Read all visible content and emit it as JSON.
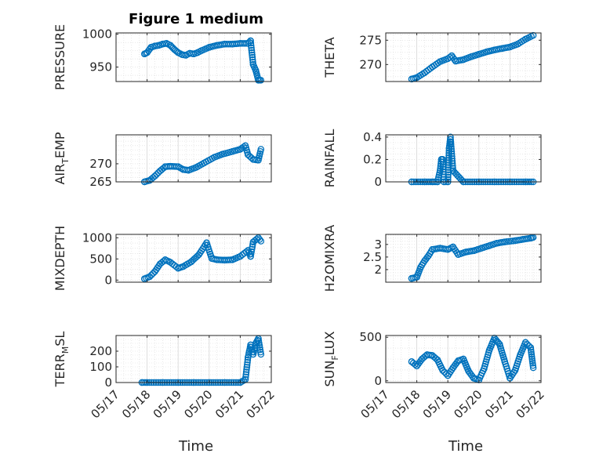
{
  "figure": {
    "title": "Figure 1 medium"
  },
  "style": {
    "marker_color": "#0072BD",
    "grid_color": "#d9d9d9",
    "axis_color": "#262626"
  },
  "chart_data": [
    {
      "id": "pressure",
      "type": "scatter",
      "title": "Figure 1 medium",
      "ylabel": "PRESSURE",
      "ylim": [
        928,
        1002
      ],
      "yticks": [
        950,
        1000
      ],
      "xlabel": "",
      "grid": true,
      "x": [
        "05/17 22:00",
        "05/18 00:00",
        "05/18 03:00",
        "05/18 06:00",
        "05/18 09:00",
        "05/18 12:00",
        "05/18 15:00",
        "05/18 18:00",
        "05/18 21:00",
        "05/19 00:00",
        "05/19 03:00",
        "05/19 06:00",
        "05/19 09:00",
        "05/19 12:00",
        "05/19 15:00",
        "05/19 18:00",
        "05/20 00:00",
        "05/20 06:00",
        "05/20 12:00",
        "05/20 18:00",
        "05/21 00:00",
        "05/21 06:00",
        "05/21 08:00",
        "05/21 10:00",
        "05/21 12:00",
        "05/21 14:00",
        "05/21 16:00"
      ],
      "y": [
        970,
        972,
        980,
        982,
        983,
        985,
        986,
        983,
        977,
        972,
        969,
        968,
        971,
        970,
        972,
        975,
        980,
        983,
        985,
        985,
        986,
        986,
        990,
        954,
        945,
        930,
        930
      ]
    },
    {
      "id": "theta",
      "type": "scatter",
      "ylabel": "THETA",
      "ylim": [
        266.5,
        276.5
      ],
      "yticks": [
        270,
        275
      ],
      "grid": true,
      "x": [
        "05/17 20:00",
        "05/18 00:00",
        "05/18 06:00",
        "05/18 12:00",
        "05/18 18:00",
        "05/19 00:00",
        "05/19 03:00",
        "05/19 06:00",
        "05/19 12:00",
        "05/19 18:00",
        "05/20 00:00",
        "05/20 06:00",
        "05/20 12:00",
        "05/20 18:00",
        "05/21 00:00",
        "05/21 06:00",
        "05/21 12:00",
        "05/21 18:00"
      ],
      "y": [
        267,
        267.3,
        268.3,
        269.5,
        270.6,
        271.2,
        271.8,
        270.7,
        271,
        271.6,
        272.1,
        272.6,
        273,
        273.3,
        273.6,
        274.2,
        275.2,
        276
      ]
    },
    {
      "id": "air_temp",
      "type": "scatter",
      "ylabel": "AIR_TEMP",
      "ylim": [
        265,
        278
      ],
      "yticks": [
        265,
        270
      ],
      "grid": true,
      "x": [
        "05/17 22:00",
        "05/18 02:00",
        "05/18 06:00",
        "05/18 10:00",
        "05/18 14:00",
        "05/18 18:00",
        "05/19 00:00",
        "05/19 04:00",
        "05/19 08:00",
        "05/19 14:00",
        "05/19 20:00",
        "05/20 04:00",
        "05/20 10:00",
        "05/20 18:00",
        "05/21 00:00",
        "05/21 04:00",
        "05/21 06:00",
        "05/21 10:00",
        "05/21 14:00",
        "05/21 16:00"
      ],
      "y": [
        265,
        265.4,
        266.6,
        268,
        269.2,
        269.3,
        269.2,
        268.4,
        268.2,
        269,
        270.2,
        271.8,
        272.6,
        273.4,
        274,
        275,
        272.5,
        271.2,
        271,
        274
      ]
    },
    {
      "id": "rainfall",
      "type": "scatter",
      "ylabel": "RAINFALL",
      "ylim": [
        0,
        0.42
      ],
      "yticks": [
        0,
        0.2,
        0.4
      ],
      "grid": true,
      "x": [
        "05/17 20:00",
        "05/18 06:00",
        "05/18 12:00",
        "05/18 16:00",
        "05/18 18:00",
        "05/18 19:00",
        "05/18 20:00",
        "05/18 21:00",
        "05/19 00:00",
        "05/19 01:00",
        "05/19 02:00",
        "05/19 04:00",
        "05/19 12:00",
        "05/20 00:00",
        "05/20 12:00",
        "05/21 00:00",
        "05/21 12:00",
        "05/21 18:00"
      ],
      "y": [
        0,
        0,
        0,
        0,
        0.1,
        0.2,
        0.2,
        0,
        0,
        0.3,
        0.4,
        0.1,
        0,
        0,
        0,
        0,
        0,
        0
      ]
    },
    {
      "id": "mixdepth",
      "type": "scatter",
      "ylabel": "MIXDEPTH",
      "ylim": [
        -50,
        1080
      ],
      "yticks": [
        0,
        500,
        1000
      ],
      "grid": true,
      "x": [
        "05/17 22:00",
        "05/18 02:00",
        "05/18 06:00",
        "05/18 10:00",
        "05/18 14:00",
        "05/18 18:00",
        "05/19 00:00",
        "05/19 04:00",
        "05/19 10:00",
        "05/19 16:00",
        "05/19 22:00",
        "05/20 02:00",
        "05/20 06:00",
        "05/20 12:00",
        "05/20 18:00",
        "05/21 00:00",
        "05/21 06:00",
        "05/21 08:00",
        "05/21 10:00",
        "05/21 14:00",
        "05/21 16:00"
      ],
      "y": [
        30,
        80,
        200,
        380,
        480,
        420,
        280,
        320,
        430,
        600,
        880,
        510,
        480,
        470,
        480,
        560,
        700,
        560,
        900,
        1000,
        920
      ]
    },
    {
      "id": "h2omixra",
      "type": "scatter",
      "ylabel": "H2OMIXRA",
      "ylim": [
        1.5,
        3.4
      ],
      "yticks": [
        2,
        2.5,
        3
      ],
      "grid": true,
      "x": [
        "05/17 20:00",
        "05/18 00:00",
        "05/18 03:00",
        "05/18 06:00",
        "05/18 09:00",
        "05/18 12:00",
        "05/18 18:00",
        "05/19 00:00",
        "05/19 04:00",
        "05/19 08:00",
        "05/19 14:00",
        "05/19 20:00",
        "05/20 02:00",
        "05/20 08:00",
        "05/20 14:00",
        "05/20 20:00",
        "05/21 04:00",
        "05/21 10:00",
        "05/21 16:00",
        "05/21 18:00"
      ],
      "y": [
        1.65,
        1.7,
        2.1,
        2.35,
        2.55,
        2.8,
        2.85,
        2.8,
        2.9,
        2.6,
        2.7,
        2.75,
        2.85,
        2.95,
        3.05,
        3.1,
        3.15,
        3.2,
        3.25,
        3.28
      ]
    },
    {
      "id": "terr_msl",
      "type": "scatter",
      "ylabel": "TERR_MSL",
      "ylim": [
        0,
        300
      ],
      "yticks": [
        0,
        100,
        200
      ],
      "grid": true,
      "x": [
        "05/17 20:00",
        "05/18 00:00",
        "05/18 12:00",
        "05/19 00:00",
        "05/19 12:00",
        "05/20 00:00",
        "05/20 12:00",
        "05/21 00:00",
        "05/21 04:00",
        "05/21 06:00",
        "05/21 08:00",
        "05/21 10:00",
        "05/21 12:00",
        "05/21 14:00",
        "05/21 16:00"
      ],
      "y": [
        0,
        0,
        0,
        0,
        0,
        0,
        0,
        0,
        20,
        160,
        240,
        180,
        250,
        280,
        180
      ]
    },
    {
      "id": "sun_flux",
      "type": "scatter",
      "ylabel": "SUN_FLUX",
      "ylim": [
        -20,
        520
      ],
      "yticks": [
        0,
        500
      ],
      "grid": true,
      "x": [
        "05/17 20:00",
        "05/18 00:00",
        "05/18 04:00",
        "05/18 08:00",
        "05/18 12:00",
        "05/18 16:00",
        "05/18 20:00",
        "05/19 00:00",
        "05/19 04:00",
        "05/19 08:00",
        "05/19 12:00",
        "05/19 16:00",
        "05/19 20:00",
        "05/20 00:00",
        "05/20 04:00",
        "05/20 08:00",
        "05/20 12:00",
        "05/20 16:00",
        "05/20 20:00",
        "05/21 00:00",
        "05/21 04:00",
        "05/21 08:00",
        "05/21 12:00",
        "05/21 16:00",
        "05/21 18:00"
      ],
      "y": [
        220,
        170,
        250,
        300,
        290,
        240,
        120,
        60,
        150,
        230,
        250,
        110,
        30,
        10,
        140,
        350,
        490,
        420,
        220,
        30,
        120,
        300,
        440,
        380,
        150
      ]
    }
  ],
  "x_axis": {
    "label": "Time",
    "ticks": [
      "05/17",
      "05/18",
      "05/19",
      "05/20",
      "05/21",
      "05/22"
    ]
  }
}
